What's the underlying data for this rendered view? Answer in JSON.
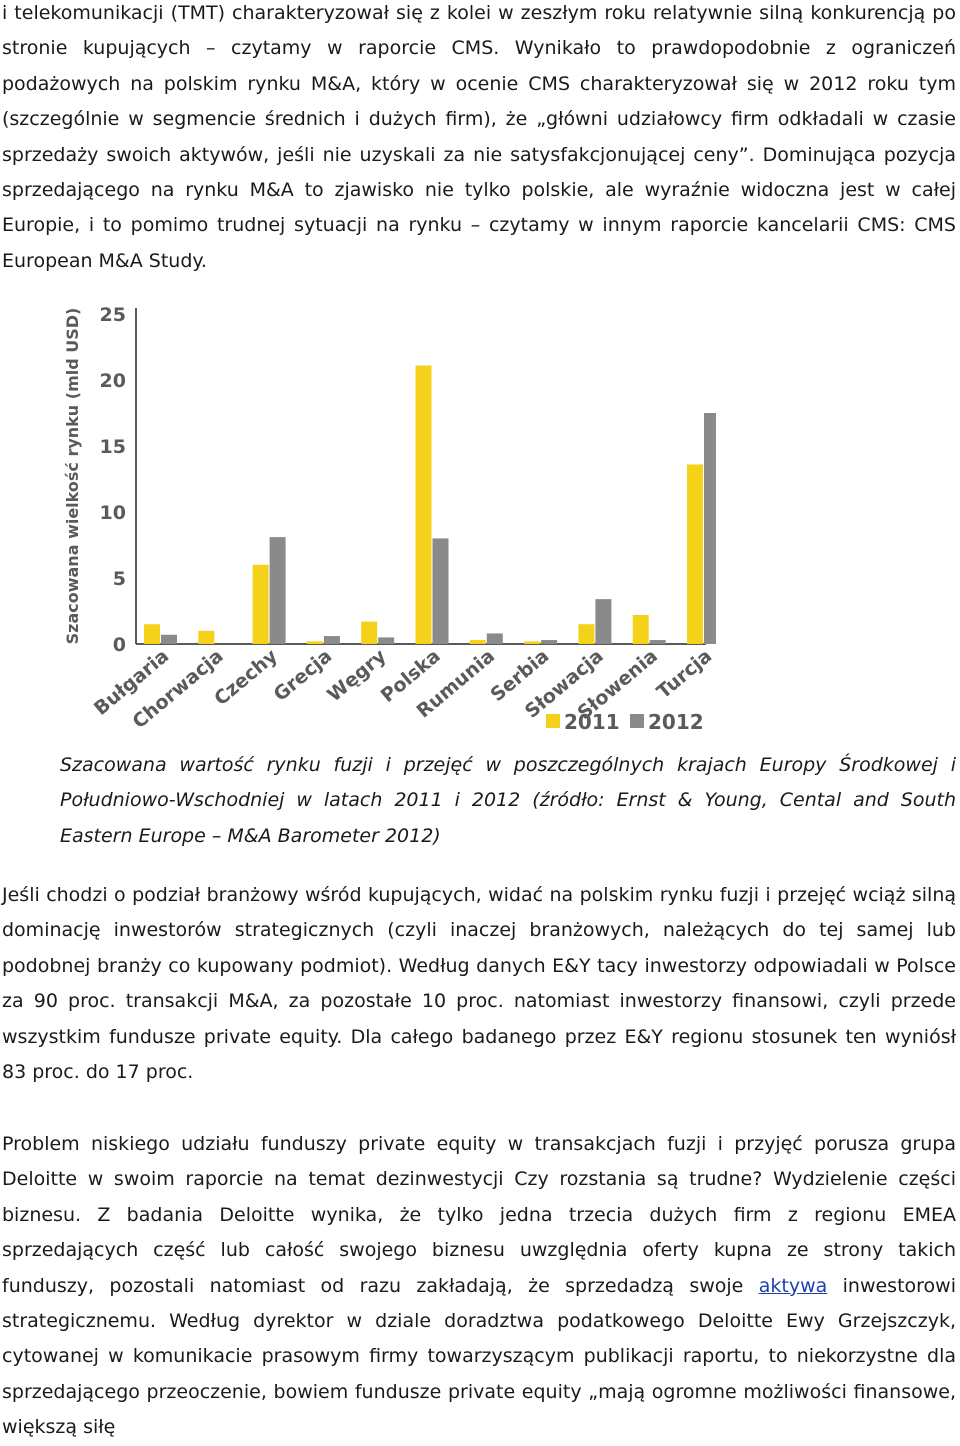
{
  "article": {
    "p1": "i telekomunikacji (TMT) charakteryzował się z kolei w zeszłym roku relatywnie silną konkurencją po stronie kupujących – czytamy w raporcie CMS. Wynikało to prawdopodobnie z ograniczeń podażowych na polskim rynku M&A, który w ocenie CMS charakteryzował się w 2012 roku tym (szczególnie w segmencie średnich i dużych firm), że „główni udziałowcy firm odkładali w czasie sprzedaży swoich aktywów, jeśli nie uzyskali za nie satysfakcjonującej ceny”. Dominująca pozycja sprzedającego na rynku M&A to zjawisko nie tylko polskie, ale wyraźnie widoczna jest w całej Europie, i to pomimo trudnej sytuacji na rynku – czytamy w innym raporcie kancelarii CMS: CMS European M&A Study.",
    "caption": "Szacowana wartość rynku fuzji i przejęć w poszczególnych krajach Europy Środkowej i Południowo-Wschodniej w latach 2011 i 2012 (źródło: Ernst & Young, Cental and South Eastern Europe – M&A Barometer 2012)",
    "p2": "Jeśli chodzi o podział branżowy wśród kupujących, widać na polskim rynku fuzji i przejęć wciąż silną dominację inwestorów strategicznych (czyli inaczej branżowych, należących do tej samej lub podobnej branży co kupowany podmiot). Według danych E&Y tacy inwestorzy odpowiadali w Polsce za 90 proc. transakcji M&A, za pozostałe 10 proc. natomiast inwestorzy finansowi, czyli przede wszystkim fundusze private equity. Dla całego badanego przez E&Y regionu stosunek ten wyniósł 83 proc. do 17 proc.",
    "p3_before_link": "Problem niskiego udziału funduszy private equity w transakcjach fuzji i przyjęć porusza grupa Deloitte w swoim raporcie na temat dezinwestycji Czy rozstania są trudne? Wydzielenie części biznesu. Z badania Deloitte wynika, że tylko jedna trzecia dużych firm z regionu EMEA sprzedających część lub całość swojego biznesu uwzględnia oferty kupna ze strony takich funduszy, pozostali natomiast od razu zakładają, że sprzedadzą swoje ",
    "p3_link": "aktywa",
    "p3_after_link": " inwestorowi strategicznemu. Według dyrektor w dziale doradztwa podatkowego Deloitte Ewy Grzejszczyk, cytowanej w komunikacie prasowym firmy towarzyszącym publikacji raportu, to niekorzystne dla sprzedającego przeoczenie, bowiem fundusze private equity „mają ogromne możliwości finansowe, większą siłę"
  },
  "chart_data": {
    "type": "bar",
    "ylabel": "Szacowana wielkość rynku (mld USD)",
    "ylim": [
      0,
      25
    ],
    "yticks": [
      "0",
      "5",
      "10",
      "15",
      "20",
      "25"
    ],
    "categories": [
      "Bułgaria",
      "Chorwacja",
      "Czechy",
      "Grecja",
      "Węgry",
      "Polska",
      "Rumunia",
      "Serbia",
      "Słowacja",
      "Słowenia",
      "Turcja"
    ],
    "series": [
      {
        "name": "2011",
        "color": "#f5d21a",
        "values": [
          1.5,
          1.0,
          6.0,
          0.2,
          1.7,
          21.1,
          0.3,
          0.2,
          1.5,
          2.2,
          13.6
        ]
      },
      {
        "name": "2012",
        "color": "#8a8a8a",
        "values": [
          0.7,
          0.0,
          8.1,
          0.6,
          0.5,
          8.0,
          0.8,
          0.3,
          3.4,
          0.3,
          17.5
        ]
      }
    ],
    "grid": false,
    "legend": "bottom-right"
  }
}
